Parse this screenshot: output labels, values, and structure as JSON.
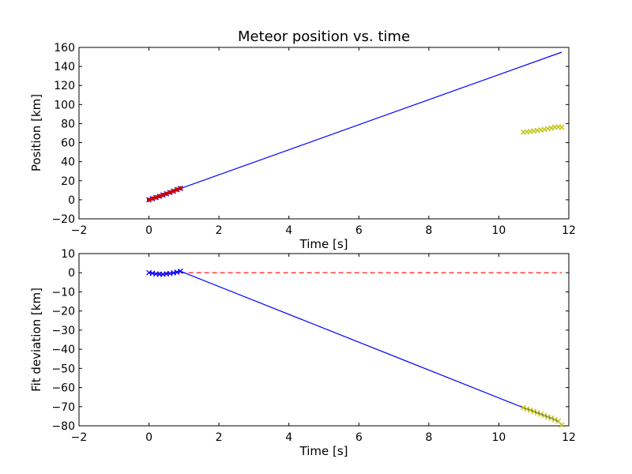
{
  "chart_data": [
    {
      "type": "line",
      "title": "Meteor position vs. time",
      "xlabel": "Time [s]",
      "ylabel": "Position [km]",
      "xlim": [
        -2,
        12
      ],
      "ylim": [
        -20,
        160
      ],
      "xticks": [
        -2,
        0,
        2,
        4,
        6,
        8,
        10,
        12
      ],
      "yticks": [
        -20,
        0,
        20,
        40,
        60,
        80,
        100,
        120,
        140,
        160
      ],
      "grid": false,
      "series": [
        {
          "kind": "line",
          "color": "#0000ff",
          "x": [
            0,
            11.8
          ],
          "y": [
            0,
            155
          ]
        },
        {
          "kind": "markers",
          "marker": "x",
          "color": "#0000ff",
          "x": [
            0,
            0.1,
            0.2,
            0.3,
            0.4,
            0.5,
            0.6,
            0.7,
            0.8,
            0.9
          ],
          "y": [
            0,
            1.2,
            2.4,
            3.7,
            5.0,
            6.3,
            7.7,
            9.1,
            10.6,
            12.0
          ]
        },
        {
          "kind": "markers",
          "marker": "dot",
          "color": "#cc0000",
          "x": [
            0,
            0.1,
            0.2,
            0.3,
            0.4,
            0.5,
            0.6,
            0.7,
            0.8,
            0.9
          ],
          "y": [
            0,
            1.3,
            2.5,
            3.8,
            5.1,
            6.4,
            7.8,
            9.2,
            10.7,
            12.1
          ]
        },
        {
          "kind": "markers",
          "marker": "x",
          "color": "#bfbf00",
          "x": [
            10.7,
            10.8,
            10.9,
            11.0,
            11.1,
            11.2,
            11.3,
            11.4,
            11.5,
            11.6,
            11.7,
            11.8
          ],
          "y": [
            71,
            71.3,
            71.8,
            72.3,
            72.8,
            73.3,
            73.9,
            74.6,
            75.4,
            76.2,
            76.6,
            76
          ]
        }
      ]
    },
    {
      "type": "line",
      "title": "",
      "xlabel": "Time [s]",
      "ylabel": "Fit deviation [km]",
      "xlim": [
        -2,
        12
      ],
      "ylim": [
        -80,
        10
      ],
      "xticks": [
        -2,
        0,
        2,
        4,
        6,
        8,
        10,
        12
      ],
      "yticks": [
        -80,
        -70,
        -60,
        -50,
        -40,
        -30,
        -20,
        -10,
        0,
        10
      ],
      "grid": false,
      "series": [
        {
          "kind": "dashed",
          "color": "#ff0000",
          "x": [
            0,
            11.8
          ],
          "y": [
            0,
            0
          ]
        },
        {
          "kind": "line",
          "color": "#0000ff",
          "x": [
            0,
            0.1,
            0.2,
            0.3,
            0.4,
            0.5,
            0.6,
            0.7,
            0.8,
            0.9,
            10.7,
            10.8,
            10.9,
            11.0,
            11.1,
            11.2,
            11.3,
            11.4,
            11.5,
            11.6,
            11.7,
            11.8
          ],
          "y": [
            0,
            -0.3,
            -0.6,
            -0.8,
            -0.8,
            -0.6,
            -0.4,
            -0.1,
            0.3,
            0.8,
            -70.5,
            -71.2,
            -71.8,
            -72.5,
            -73.2,
            -73.9,
            -74.6,
            -75.3,
            -76.0,
            -76.8,
            -77.6,
            -79.5
          ]
        },
        {
          "kind": "markers",
          "marker": "x",
          "color": "#0000ff",
          "x": [
            0,
            0.1,
            0.2,
            0.3,
            0.4,
            0.5,
            0.6,
            0.7,
            0.8,
            0.9
          ],
          "y": [
            0,
            -0.3,
            -0.6,
            -0.8,
            -0.8,
            -0.6,
            -0.4,
            -0.1,
            0.3,
            0.8
          ]
        },
        {
          "kind": "markers",
          "marker": "x",
          "color": "#bfbf00",
          "x": [
            10.7,
            10.8,
            10.9,
            11.0,
            11.1,
            11.2,
            11.3,
            11.4,
            11.5,
            11.6,
            11.7,
            11.8
          ],
          "y": [
            -70.5,
            -71.2,
            -71.8,
            -72.5,
            -73.2,
            -73.9,
            -74.6,
            -75.3,
            -76.0,
            -76.8,
            -77.6,
            -79.5
          ]
        }
      ]
    }
  ]
}
